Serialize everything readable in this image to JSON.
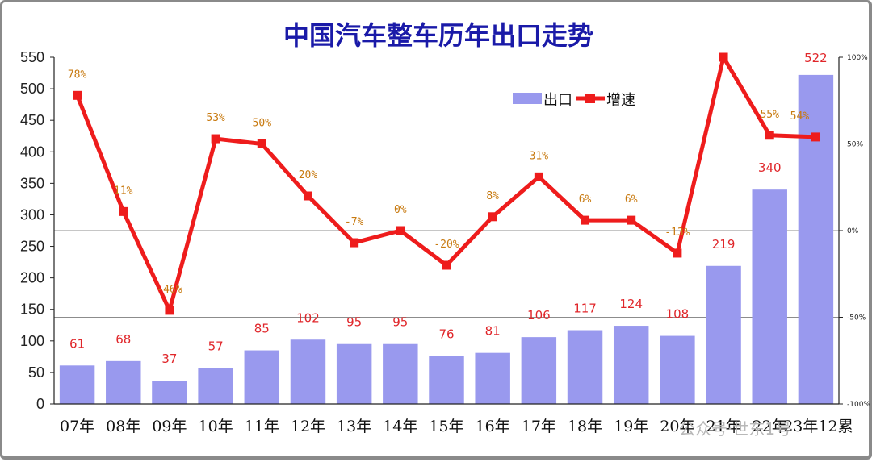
{
  "chart_data": {
    "type": "bar+line",
    "title": "中国汽车整车历年出口走势",
    "categories": [
      "07年",
      "08年",
      "09年",
      "10年",
      "11年",
      "12年",
      "13年",
      "14年",
      "15年",
      "16年",
      "17年",
      "18年",
      "19年",
      "20年",
      "21年",
      "22年",
      "23年12累"
    ],
    "series": [
      {
        "name": "出口",
        "type": "bar",
        "axis": "left",
        "values": [
          61,
          68,
          37,
          57,
          85,
          102,
          95,
          95,
          76,
          81,
          106,
          117,
          124,
          108,
          219,
          340,
          522
        ],
        "labels": [
          "61",
          "68",
          "37",
          "57",
          "85",
          "102",
          "95",
          "95",
          "76",
          "81",
          "106",
          "117",
          "124",
          "108",
          "219",
          "340",
          "522"
        ],
        "color": "#9999ee"
      },
      {
        "name": "增速",
        "type": "line",
        "axis": "right",
        "values": [
          78,
          11,
          -46,
          53,
          50,
          20,
          -7,
          0,
          -20,
          8,
          31,
          6,
          6,
          -13,
          100,
          55,
          54
        ],
        "labels": [
          "78%",
          "11%",
          "-46%",
          "53%",
          "50%",
          "20%",
          "-7%",
          "0%",
          "-20%",
          "8%",
          "31%",
          "6%",
          "6%",
          "-13%",
          "",
          "55%",
          "54%"
        ],
        "color": "#ee1c1c"
      }
    ],
    "left_axis": {
      "ylim": [
        0,
        550
      ],
      "ticks": [
        "0",
        "50",
        "100",
        "150",
        "200",
        "250",
        "300",
        "350",
        "400",
        "450",
        "500",
        "550"
      ]
    },
    "right_axis": {
      "ylim": [
        -100,
        100
      ],
      "ticks": [
        "-100%",
        "-50%",
        "0%",
        "50%",
        "100%"
      ]
    },
    "grid": "horizontal at right-axis ticks",
    "legend": {
      "position": "top-right",
      "entries": [
        "出口",
        "增速"
      ]
    }
  },
  "watermark": "公众号·世东1号"
}
